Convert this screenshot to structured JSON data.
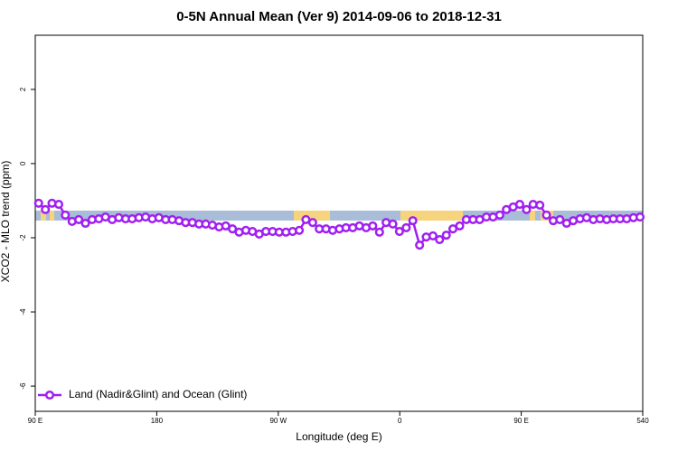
{
  "chart_data": {
    "type": "line",
    "title": "0-5N Annual Mean (Ver 9)   2014-09-06 to 2018-12-31",
    "x_label": "Longitude (deg E)",
    "y_label": "XCO2 - MLO trend (ppm)",
    "xlim": [
      90,
      540
    ],
    "ylim": [
      -6.68,
      3.46
    ],
    "xticks": [
      {
        "value": 90,
        "label": "90 E"
      },
      180,
      {
        "value": 270,
        "label": "90 W"
      },
      {
        "value": 360,
        "label": "0"
      },
      {
        "value": 450,
        "label": "90 E"
      },
      540
    ],
    "yticks": [
      2,
      0,
      -2,
      -4,
      -6
    ],
    "legend": "bottom-left",
    "x": [
      92.5,
      97.5,
      102.4,
      107.4,
      112.3,
      117.3,
      122.2,
      127.2,
      132.1,
      137.1,
      142.0,
      147.0,
      151.9,
      156.9,
      161.8,
      166.8,
      171.7,
      176.7,
      181.6,
      186.6,
      191.5,
      196.5,
      201.4,
      206.4,
      211.3,
      216.3,
      221.2,
      226.2,
      231.1,
      236.1,
      241.0,
      246.0,
      250.9,
      255.9,
      260.8,
      265.8,
      270.7,
      275.7,
      280.6,
      285.6,
      290.5,
      295.5,
      300.4,
      305.4,
      310.3,
      315.3,
      320.2,
      325.2,
      330.1,
      335.1,
      340.0,
      345.0,
      349.9,
      354.9,
      359.8,
      364.8,
      369.7,
      374.7,
      379.6,
      384.6,
      389.5,
      394.5,
      399.4,
      404.4,
      409.3,
      414.3,
      419.2,
      424.2,
      429.1,
      434.1,
      439.0,
      444.0,
      448.9,
      453.9,
      458.8,
      463.8,
      468.7,
      473.7,
      478.6,
      483.6,
      488.5,
      493.5,
      498.4,
      503.4,
      508.3,
      513.3,
      518.2,
      523.2,
      528.1,
      533.1,
      538.0
    ],
    "series": [
      {
        "name": "Land (Nadir&Glint) and Ocean (Glint)",
        "color": "#a020f0",
        "values": [
          -1.07,
          -1.24,
          -1.07,
          -1.1,
          -1.39,
          -1.56,
          -1.51,
          -1.61,
          -1.51,
          -1.49,
          -1.44,
          -1.51,
          -1.46,
          -1.49,
          -1.49,
          -1.46,
          -1.44,
          -1.49,
          -1.46,
          -1.51,
          -1.51,
          -1.54,
          -1.59,
          -1.59,
          -1.63,
          -1.63,
          -1.66,
          -1.71,
          -1.68,
          -1.76,
          -1.85,
          -1.8,
          -1.83,
          -1.9,
          -1.83,
          -1.83,
          -1.85,
          -1.85,
          -1.83,
          -1.8,
          -1.51,
          -1.59,
          -1.76,
          -1.76,
          -1.8,
          -1.76,
          -1.73,
          -1.73,
          -1.68,
          -1.73,
          -1.68,
          -1.85,
          -1.59,
          -1.63,
          -1.83,
          -1.73,
          -1.54,
          -2.2,
          -1.98,
          -1.95,
          -2.05,
          -1.93,
          -1.76,
          -1.68,
          -1.51,
          -1.51,
          -1.51,
          -1.44,
          -1.44,
          -1.39,
          -1.24,
          -1.17,
          -1.1,
          -1.24,
          -1.1,
          -1.12,
          -1.39,
          -1.54,
          -1.51,
          -1.61,
          -1.54,
          -1.49,
          -1.46,
          -1.51,
          -1.49,
          -1.51,
          -1.49,
          -1.49,
          -1.49,
          -1.46,
          -1.44
        ]
      }
    ]
  }
}
